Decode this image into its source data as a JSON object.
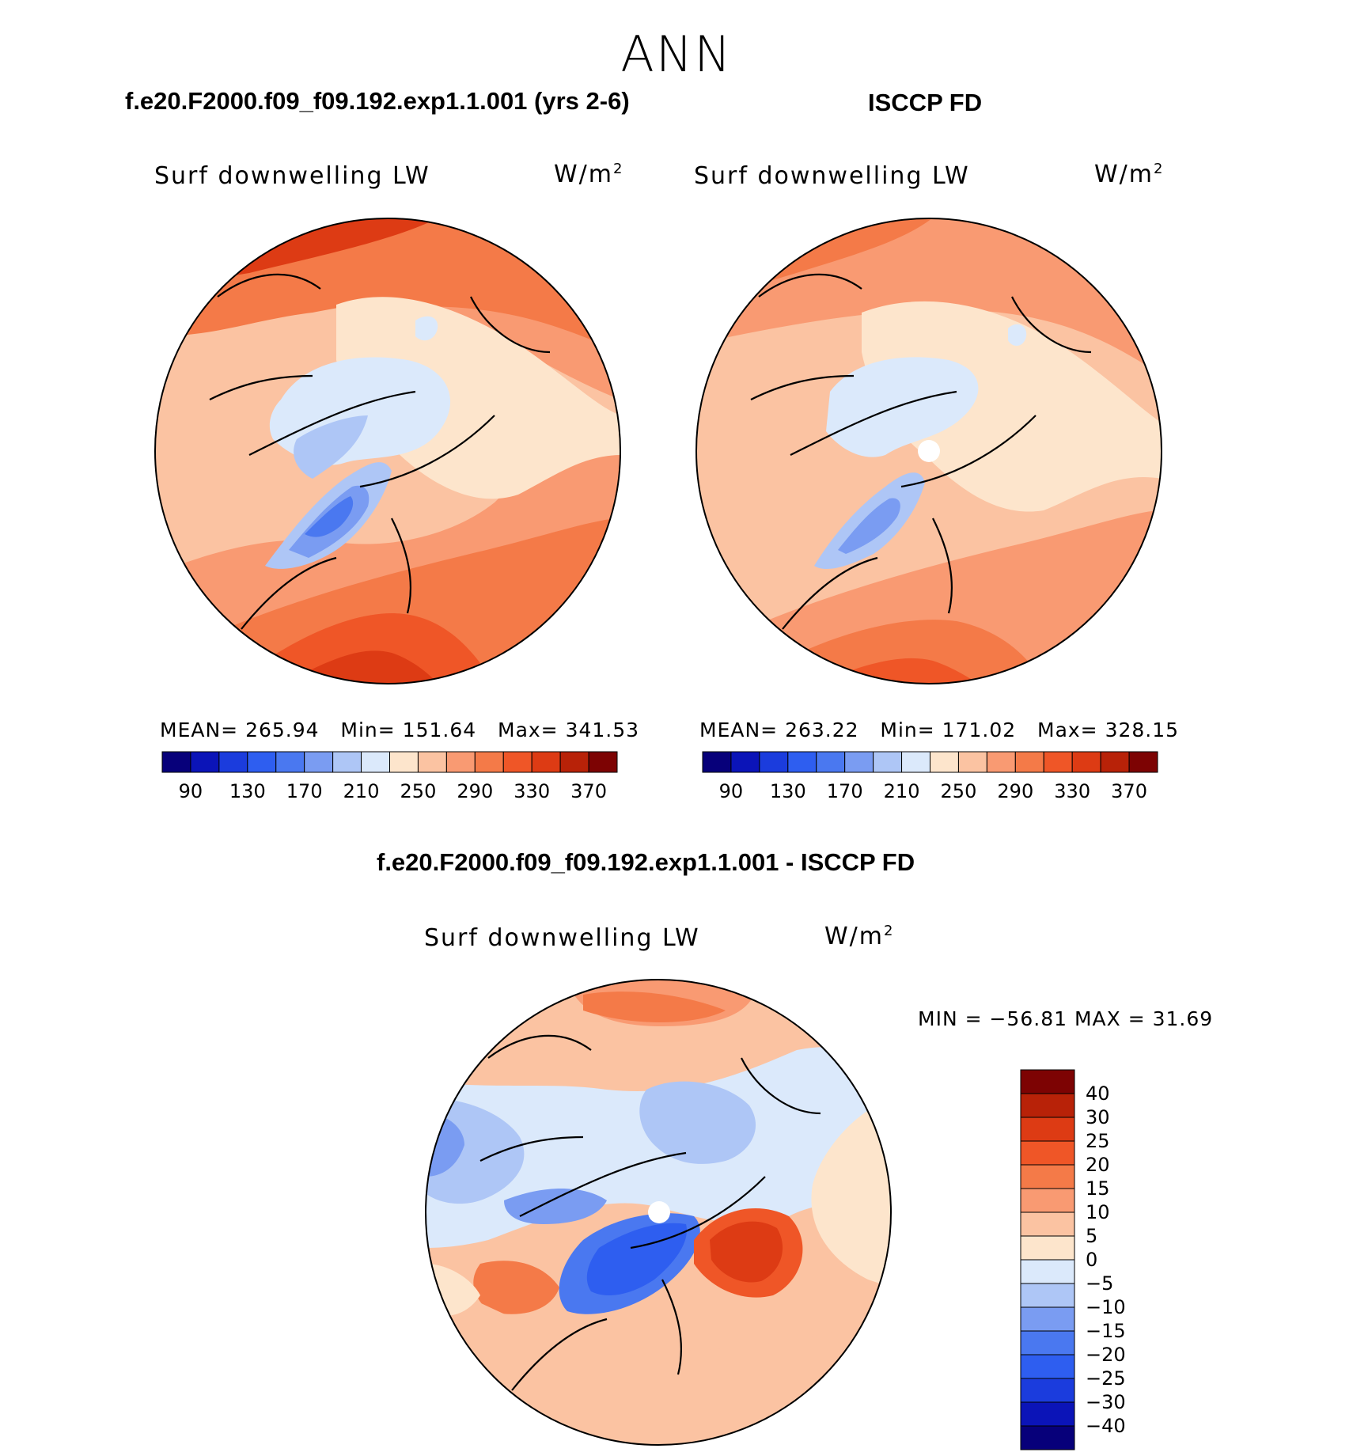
{
  "season": "ANN",
  "colors": {
    "abs_scale": [
      "#07007a",
      "#0b14b8",
      "#1b3cdd",
      "#2e5ef0",
      "#4a78f0",
      "#7a9cf2",
      "#aec6f6",
      "#dbe9fb",
      "#fde5cc",
      "#fbc3a2",
      "#f99a72",
      "#f47a48",
      "#ef5627",
      "#dd3b14",
      "#b82208",
      "#7d0303"
    ],
    "diff_scale": [
      "#07007a",
      "#0b14b8",
      "#1b3cdd",
      "#2e5ef0",
      "#4a78f0",
      "#7a9cf2",
      "#aec6f6",
      "#dbe9fb",
      "#fde5cc",
      "#fbc3a2",
      "#f99a72",
      "#f47a48",
      "#ef5627",
      "#dd3b14",
      "#b82208",
      "#7d0303"
    ]
  },
  "panels": {
    "model": {
      "title": "f.e20.F2000.f09_f09.192.exp1.1.001 (yrs 2-6)",
      "variable": "Surf downwelling LW",
      "units": "W/m",
      "units_exp": "2",
      "mean_label": "MEAN=",
      "mean": "265.94",
      "min_label": "Min=",
      "min": "151.64",
      "max_label": "Max=",
      "max": "341.53"
    },
    "obs": {
      "title": "ISCCP FD",
      "variable": "Surf downwelling LW",
      "units": "W/m",
      "units_exp": "2",
      "mean_label": "MEAN=",
      "mean": "263.22",
      "min_label": "Min=",
      "min": "171.02",
      "max_label": "Max=",
      "max": "328.15"
    },
    "diff": {
      "title": "f.e20.F2000.f09_f09.192.exp1.1.001 - ISCCP FD",
      "variable": "Surf downwelling LW",
      "units": "W/m",
      "units_exp": "2",
      "minmax_text": "MIN = −56.81  MAX =   31.69"
    }
  },
  "abs_ticks": [
    "90",
    "130",
    "170",
    "210",
    "250",
    "290",
    "330",
    "370"
  ],
  "diff_ticks": [
    "40",
    "30",
    "25",
    "20",
    "15",
    "10",
    "5",
    "0",
    "−5",
    "−10",
    "−15",
    "−20",
    "−25",
    "−30",
    "−40"
  ]
}
